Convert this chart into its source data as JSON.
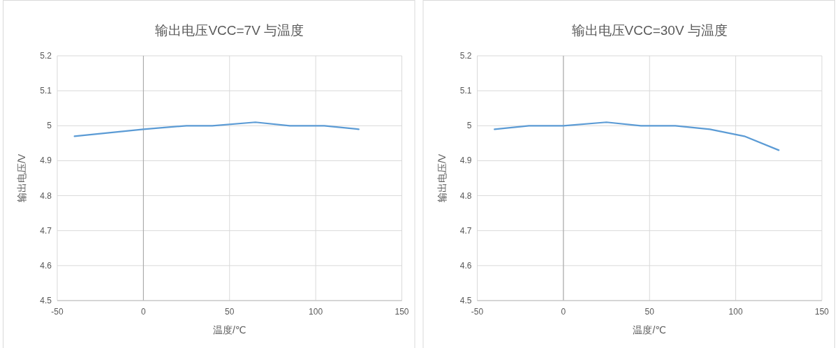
{
  "chart_data": [
    {
      "type": "line",
      "title": "输出电压VCC=7V 与温度",
      "xlabel": "温度/℃",
      "ylabel": "输出电压/V",
      "x": [
        -40,
        0,
        25,
        40,
        65,
        85,
        105,
        125
      ],
      "series": [
        {
          "color": "#5b9bd5",
          "values": [
            4.97,
            4.99,
            5.0,
            5.0,
            5.01,
            5.0,
            5.0,
            4.99
          ]
        }
      ],
      "xlim": [
        -50,
        150
      ],
      "xticks": [
        -50,
        0,
        50,
        100,
        150
      ],
      "ylim": [
        4.5,
        5.2
      ],
      "yticks": [
        4.5,
        4.6,
        4.7,
        4.8,
        4.9,
        {
          "value": 5,
          "label": "5"
        },
        5.1,
        5.2
      ],
      "grid": true,
      "marker": "none",
      "line_style": "solid"
    },
    {
      "type": "line",
      "title": "输出电压VCC=30V 与温度",
      "xlabel": "温度/℃",
      "ylabel": "输出电压/V",
      "x": [
        -40,
        -20,
        0,
        25,
        45,
        65,
        85,
        105,
        125
      ],
      "series": [
        {
          "color": "#5b9bd5",
          "values": [
            4.99,
            5.0,
            5.0,
            5.01,
            5.0,
            5.0,
            4.99,
            4.97,
            4.93
          ]
        }
      ],
      "xlim": [
        -50,
        150
      ],
      "xticks": [
        -50,
        0,
        50,
        100,
        150
      ],
      "ylim": [
        4.5,
        5.2
      ],
      "yticks": [
        4.5,
        4.6,
        4.7,
        4.8,
        4.9,
        {
          "value": 5,
          "label": "5"
        },
        5.1,
        5.2
      ],
      "grid": true,
      "marker": "none",
      "line_style": "solid"
    }
  ]
}
